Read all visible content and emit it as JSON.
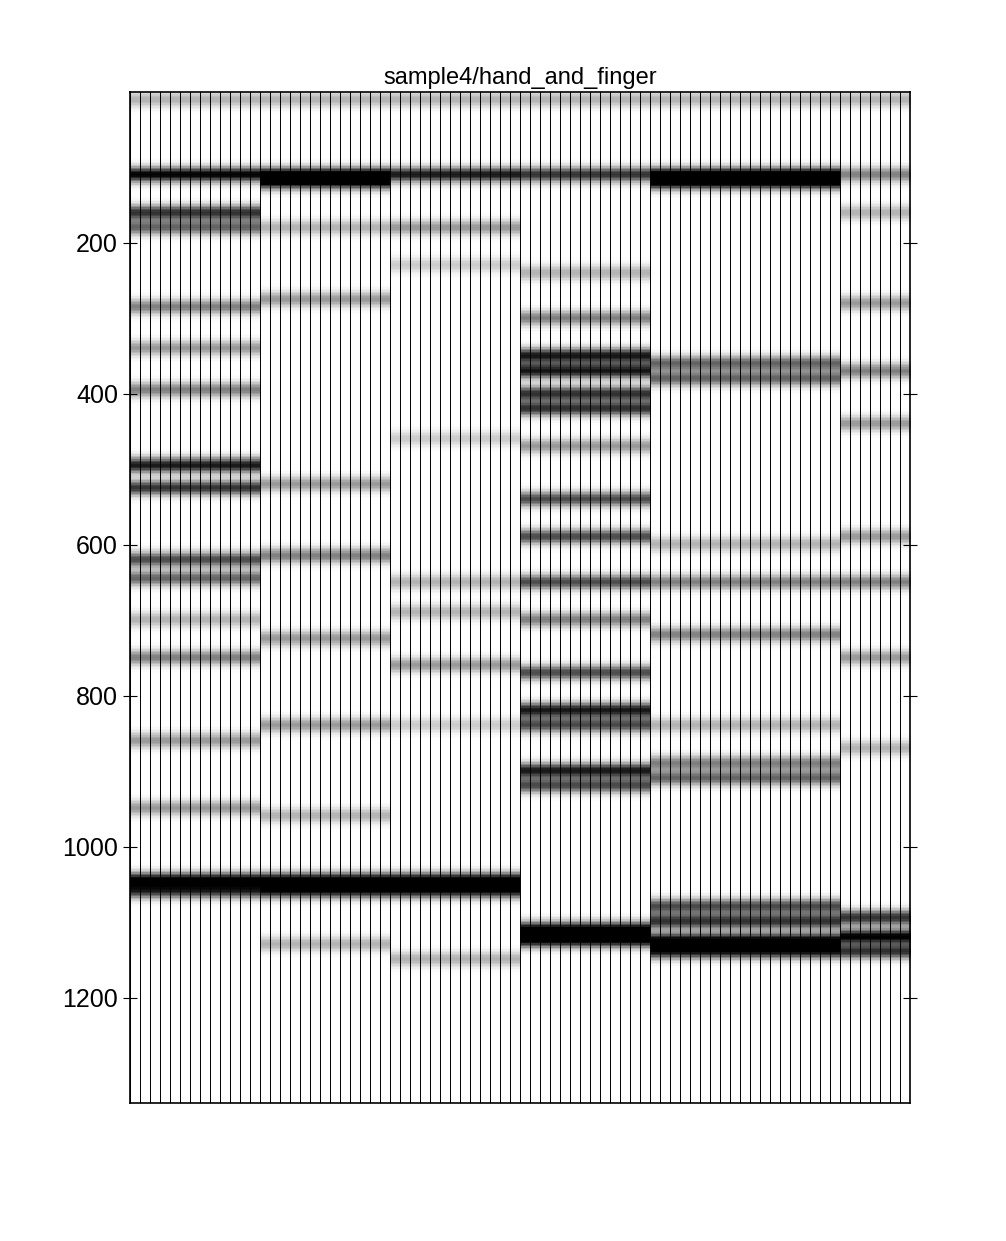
{
  "chart_data": {
    "type": "heatmap",
    "title": "sample4/hand_and_finger",
    "categories": [
      null,
      null,
      null,
      null,
      null,
      null,
      null,
      null,
      null,
      null,
      null,
      null,
      null,
      null,
      null,
      null,
      null,
      null,
      null,
      null,
      null,
      null,
      null,
      null,
      null,
      null,
      null,
      null,
      null,
      null,
      null,
      null,
      null,
      null,
      null,
      null,
      null,
      null,
      null,
      null,
      null,
      null,
      null,
      null,
      null,
      null,
      null,
      null,
      null,
      null,
      null,
      null,
      null,
      null,
      null,
      null,
      null,
      null,
      null,
      null,
      null,
      null,
      null,
      null,
      null,
      null,
      null,
      null,
      null,
      null,
      null,
      null,
      null,
      null,
      null,
      null,
      null,
      null
    ],
    "ylim": [
      1340,
      0
    ],
    "yticks": [
      200,
      400,
      600,
      800,
      1000,
      1200
    ],
    "tick_labels": "y",
    "bands": [
      {
        "first": 0,
        "last": 77,
        "y": 10,
        "value": 0.3
      },
      {
        "first": 0,
        "last": 12,
        "y": 110,
        "value": 1.0
      },
      {
        "first": 0,
        "last": 12,
        "y": 160,
        "value": 0.8
      },
      {
        "first": 0,
        "last": 12,
        "y": 180,
        "value": 0.6
      },
      {
        "first": 0,
        "last": 12,
        "y": 285,
        "value": 0.5
      },
      {
        "first": 0,
        "last": 12,
        "y": 340,
        "value": 0.4
      },
      {
        "first": 0,
        "last": 12,
        "y": 395,
        "value": 0.5
      },
      {
        "first": 0,
        "last": 12,
        "y": 495,
        "value": 0.9
      },
      {
        "first": 0,
        "last": 12,
        "y": 525,
        "value": 0.8
      },
      {
        "first": 0,
        "last": 12,
        "y": 620,
        "value": 0.7
      },
      {
        "first": 0,
        "last": 12,
        "y": 645,
        "value": 0.6
      },
      {
        "first": 0,
        "last": 12,
        "y": 700,
        "value": 0.3
      },
      {
        "first": 0,
        "last": 12,
        "y": 750,
        "value": 0.5
      },
      {
        "first": 0,
        "last": 12,
        "y": 860,
        "value": 0.4
      },
      {
        "first": 0,
        "last": 12,
        "y": 950,
        "value": 0.4
      },
      {
        "first": 0,
        "last": 12,
        "y": 1045,
        "value": 1.0
      },
      {
        "first": 0,
        "last": 12,
        "y": 1060,
        "value": 0.8
      },
      {
        "first": 13,
        "last": 25,
        "y": 110,
        "value": 1.0
      },
      {
        "first": 13,
        "last": 25,
        "y": 120,
        "value": 0.8
      },
      {
        "first": 13,
        "last": 25,
        "y": 180,
        "value": 0.3
      },
      {
        "first": 13,
        "last": 25,
        "y": 275,
        "value": 0.4
      },
      {
        "first": 13,
        "last": 25,
        "y": 520,
        "value": 0.4
      },
      {
        "first": 13,
        "last": 25,
        "y": 615,
        "value": 0.5
      },
      {
        "first": 13,
        "last": 25,
        "y": 725,
        "value": 0.4
      },
      {
        "first": 13,
        "last": 25,
        "y": 840,
        "value": 0.4
      },
      {
        "first": 13,
        "last": 25,
        "y": 960,
        "value": 0.3
      },
      {
        "first": 13,
        "last": 25,
        "y": 1045,
        "value": 1.0
      },
      {
        "first": 13,
        "last": 25,
        "y": 1060,
        "value": 0.9
      },
      {
        "first": 13,
        "last": 25,
        "y": 1130,
        "value": 0.3
      },
      {
        "first": 26,
        "last": 38,
        "y": 110,
        "value": 0.9
      },
      {
        "first": 26,
        "last": 38,
        "y": 180,
        "value": 0.4
      },
      {
        "first": 26,
        "last": 38,
        "y": 230,
        "value": 0.2
      },
      {
        "first": 26,
        "last": 38,
        "y": 460,
        "value": 0.2
      },
      {
        "first": 26,
        "last": 38,
        "y": 650,
        "value": 0.3
      },
      {
        "first": 26,
        "last": 38,
        "y": 690,
        "value": 0.3
      },
      {
        "first": 26,
        "last": 38,
        "y": 760,
        "value": 0.4
      },
      {
        "first": 26,
        "last": 38,
        "y": 840,
        "value": 0.2
      },
      {
        "first": 26,
        "last": 38,
        "y": 1045,
        "value": 1.0
      },
      {
        "first": 26,
        "last": 38,
        "y": 1060,
        "value": 0.9
      },
      {
        "first": 26,
        "last": 38,
        "y": 1150,
        "value": 0.3
      },
      {
        "first": 39,
        "last": 51,
        "y": 110,
        "value": 0.8
      },
      {
        "first": 39,
        "last": 51,
        "y": 240,
        "value": 0.3
      },
      {
        "first": 39,
        "last": 51,
        "y": 300,
        "value": 0.5
      },
      {
        "first": 39,
        "last": 51,
        "y": 350,
        "value": 0.9
      },
      {
        "first": 39,
        "last": 51,
        "y": 370,
        "value": 0.9
      },
      {
        "first": 39,
        "last": 51,
        "y": 400,
        "value": 0.8
      },
      {
        "first": 39,
        "last": 51,
        "y": 420,
        "value": 0.8
      },
      {
        "first": 39,
        "last": 51,
        "y": 470,
        "value": 0.4
      },
      {
        "first": 39,
        "last": 51,
        "y": 540,
        "value": 0.7
      },
      {
        "first": 39,
        "last": 51,
        "y": 590,
        "value": 0.7
      },
      {
        "first": 39,
        "last": 51,
        "y": 650,
        "value": 0.7
      },
      {
        "first": 39,
        "last": 51,
        "y": 700,
        "value": 0.5
      },
      {
        "first": 39,
        "last": 51,
        "y": 770,
        "value": 0.7
      },
      {
        "first": 39,
        "last": 51,
        "y": 820,
        "value": 0.9
      },
      {
        "first": 39,
        "last": 51,
        "y": 840,
        "value": 0.7
      },
      {
        "first": 39,
        "last": 51,
        "y": 900,
        "value": 0.9
      },
      {
        "first": 39,
        "last": 51,
        "y": 920,
        "value": 0.7
      },
      {
        "first": 39,
        "last": 51,
        "y": 1110,
        "value": 1.0
      },
      {
        "first": 39,
        "last": 51,
        "y": 1125,
        "value": 1.0
      },
      {
        "first": 52,
        "last": 70,
        "y": 110,
        "value": 1.0
      },
      {
        "first": 52,
        "last": 70,
        "y": 120,
        "value": 0.9
      },
      {
        "first": 52,
        "last": 70,
        "y": 360,
        "value": 0.6
      },
      {
        "first": 52,
        "last": 70,
        "y": 380,
        "value": 0.6
      },
      {
        "first": 52,
        "last": 70,
        "y": 600,
        "value": 0.3
      },
      {
        "first": 52,
        "last": 70,
        "y": 650,
        "value": 0.5
      },
      {
        "first": 52,
        "last": 70,
        "y": 720,
        "value": 0.5
      },
      {
        "first": 52,
        "last": 70,
        "y": 840,
        "value": 0.3
      },
      {
        "first": 52,
        "last": 70,
        "y": 890,
        "value": 0.5
      },
      {
        "first": 52,
        "last": 70,
        "y": 910,
        "value": 0.6
      },
      {
        "first": 52,
        "last": 70,
        "y": 1080,
        "value": 0.7
      },
      {
        "first": 52,
        "last": 70,
        "y": 1100,
        "value": 0.8
      },
      {
        "first": 52,
        "last": 70,
        "y": 1125,
        "value": 1.0
      },
      {
        "first": 52,
        "last": 70,
        "y": 1140,
        "value": 0.9
      },
      {
        "first": 71,
        "last": 77,
        "y": 110,
        "value": 0.5
      },
      {
        "first": 71,
        "last": 77,
        "y": 160,
        "value": 0.3
      },
      {
        "first": 71,
        "last": 77,
        "y": 280,
        "value": 0.4
      },
      {
        "first": 71,
        "last": 77,
        "y": 370,
        "value": 0.5
      },
      {
        "first": 71,
        "last": 77,
        "y": 440,
        "value": 0.4
      },
      {
        "first": 71,
        "last": 77,
        "y": 590,
        "value": 0.4
      },
      {
        "first": 71,
        "last": 77,
        "y": 650,
        "value": 0.5
      },
      {
        "first": 71,
        "last": 77,
        "y": 750,
        "value": 0.4
      },
      {
        "first": 71,
        "last": 77,
        "y": 870,
        "value": 0.3
      },
      {
        "first": 71,
        "last": 77,
        "y": 1095,
        "value": 0.8
      },
      {
        "first": 71,
        "last": 77,
        "y": 1120,
        "value": 1.0
      },
      {
        "first": 71,
        "last": 77,
        "y": 1140,
        "value": 0.8
      }
    ]
  }
}
